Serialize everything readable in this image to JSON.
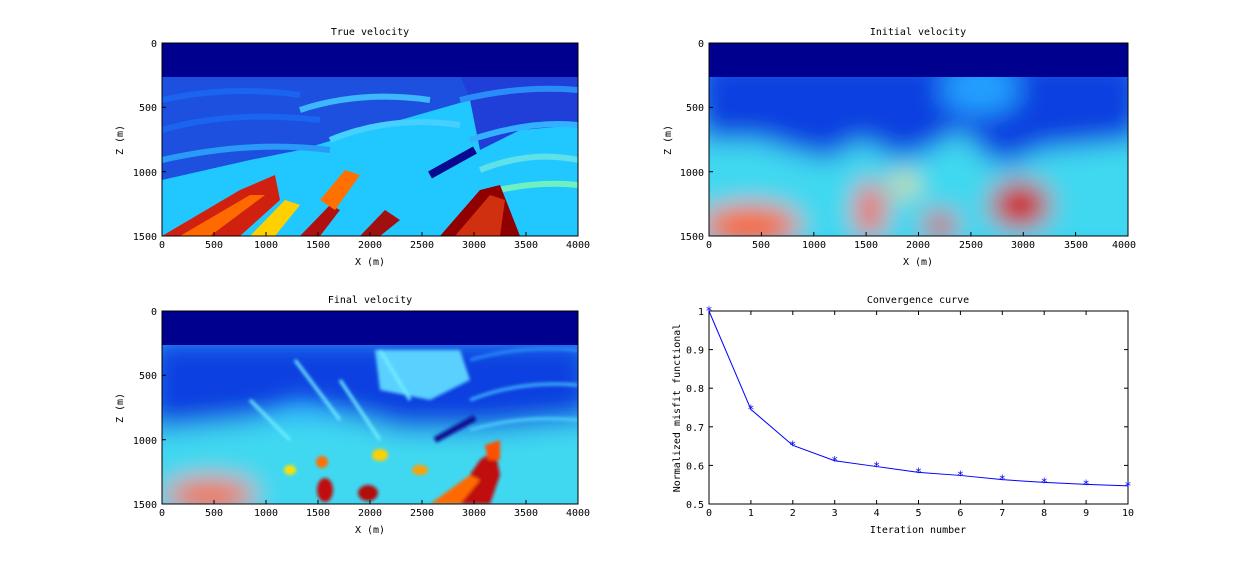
{
  "figure": {
    "background": "#ffffff",
    "panels": [
      {
        "id": "true",
        "title": "True velocity",
        "xlabel": "X (m)",
        "ylabel": "Z (m)",
        "xlim": [
          0,
          4000
        ],
        "ylim": [
          0,
          1500
        ],
        "xticks": [
          "0",
          "500",
          "1000",
          "1500",
          "2000",
          "2500",
          "3000",
          "3500",
          "4000"
        ],
        "yticks": [
          "0",
          "500",
          "1000",
          "1500"
        ]
      },
      {
        "id": "initial",
        "title": "Initial velocity",
        "xlabel": "X (m)",
        "ylabel": "Z (m)",
        "xlim": [
          0,
          4000
        ],
        "ylim": [
          0,
          1500
        ],
        "xticks": [
          "0",
          "500",
          "1000",
          "1500",
          "2000",
          "2500",
          "3000",
          "3500",
          "4000"
        ],
        "yticks": [
          "0",
          "500",
          "1000",
          "1500"
        ]
      },
      {
        "id": "final",
        "title": "Final velocity",
        "xlabel": "X (m)",
        "ylabel": "Z (m)",
        "xlim": [
          0,
          4000
        ],
        "ylim": [
          0,
          1500
        ],
        "xticks": [
          "0",
          "500",
          "1000",
          "1500",
          "2000",
          "2500",
          "3000",
          "3500",
          "4000"
        ],
        "yticks": [
          "0",
          "500",
          "1000",
          "1500"
        ]
      }
    ],
    "colormap": "jet"
  },
  "chart_data": [
    {
      "type": "heatmap",
      "title": "True velocity",
      "xlabel": "X (m)",
      "ylabel": "Z (m)",
      "xlim": [
        0,
        4000
      ],
      "ylim": [
        0,
        1500
      ],
      "y_axis_reversed": true,
      "colormap": "jet"
    },
    {
      "type": "heatmap",
      "title": "Initial velocity",
      "xlabel": "X (m)",
      "ylabel": "Z (m)",
      "xlim": [
        0,
        4000
      ],
      "ylim": [
        0,
        1500
      ],
      "y_axis_reversed": true,
      "colormap": "jet"
    },
    {
      "type": "heatmap",
      "title": "Final velocity",
      "xlabel": "X (m)",
      "ylabel": "Z (m)",
      "xlim": [
        0,
        4000
      ],
      "ylim": [
        0,
        1500
      ],
      "y_axis_reversed": true,
      "colormap": "jet"
    },
    {
      "type": "line",
      "title": "Convergence curve",
      "xlabel": "Iteration number",
      "ylabel": "Normalized misfit functional",
      "xlim": [
        0,
        10
      ],
      "ylim": [
        0.5,
        1
      ],
      "xticks": [
        "0",
        "1",
        "2",
        "3",
        "4",
        "5",
        "6",
        "7",
        "8",
        "9",
        "10"
      ],
      "yticks": [
        "0.5",
        "0.6",
        "0.7",
        "0.8",
        "0.9",
        "1"
      ],
      "marker": "*",
      "color": "#0000ff",
      "x": [
        0,
        1,
        2,
        3,
        4,
        5,
        6,
        7,
        8,
        9,
        10
      ],
      "y": [
        1.0,
        0.745,
        0.652,
        0.612,
        0.597,
        0.582,
        0.574,
        0.563,
        0.556,
        0.551,
        0.547
      ]
    }
  ]
}
